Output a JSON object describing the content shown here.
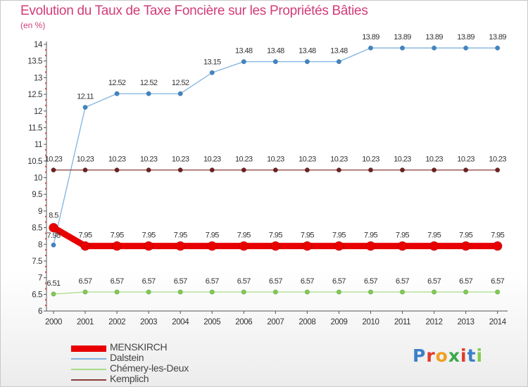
{
  "title": "Evolution du Taux de Taxe Foncière sur les Propriétés Bâties",
  "unit": "(en %)",
  "logo": "Proxiti",
  "colors": {
    "title": "#d23c78",
    "axis": "#555555",
    "grid_dots": "#dd4444"
  },
  "chart_data": {
    "type": "line",
    "title": "Evolution du Taux de Taxe Foncière sur les Propriétés Bâties",
    "ylabel": "(en %)",
    "xlabel": "",
    "ylim": [
      6,
      14
    ],
    "yticks": [
      "6",
      "6.5",
      "7",
      "7.5",
      "8",
      "8.5",
      "9",
      "9.5",
      "10",
      "10.5",
      "11",
      "11.5",
      "12",
      "12.5",
      "13",
      "13.5",
      "14"
    ],
    "categories": [
      "2000",
      "2001",
      "2002",
      "2003",
      "2004",
      "2005",
      "2006",
      "2007",
      "2008",
      "2009",
      "2010",
      "2011",
      "2012",
      "2013",
      "2014"
    ],
    "series": [
      {
        "name": "MENSKIRCH",
        "color": "#e80000",
        "marker_color": "#e80000",
        "line_width": 9,
        "marker_r": 6.5,
        "values": [
          8.5,
          7.95,
          7.95,
          7.95,
          7.95,
          7.95,
          7.95,
          7.95,
          7.95,
          7.95,
          7.95,
          7.95,
          7.95,
          7.95,
          7.95
        ],
        "labels": [
          "8.5",
          "7.95",
          "7.95",
          "7.95",
          "7.95",
          "7.95",
          "7.95",
          "7.95",
          "7.95",
          "7.95",
          "7.95",
          "7.95",
          "7.95",
          "7.95",
          "7.95"
        ]
      },
      {
        "name": "Dalstein",
        "color": "#7fb2e0",
        "marker_color": "#3f86c6",
        "line_width": 1.3,
        "marker_r": 3.2,
        "values": [
          7.98,
          12.11,
          12.52,
          12.52,
          12.52,
          13.15,
          13.48,
          13.48,
          13.48,
          13.48,
          13.89,
          13.89,
          13.89,
          13.89,
          13.89
        ],
        "labels": [
          "7.98",
          "12.11",
          "12.52",
          "12.52",
          "12.52",
          "13.15",
          "13.48",
          "13.48",
          "13.48",
          "13.48",
          "13.89",
          "13.89",
          "13.89",
          "13.89",
          "13.89"
        ]
      },
      {
        "name": "Chémery-les-Deux",
        "color": "#a8dc86",
        "marker_color": "#7fcc50",
        "line_width": 1.3,
        "marker_r": 3.2,
        "values": [
          6.51,
          6.57,
          6.57,
          6.57,
          6.57,
          6.57,
          6.57,
          6.57,
          6.57,
          6.57,
          6.57,
          6.57,
          6.57,
          6.57,
          6.57
        ],
        "labels": [
          "6.51",
          "6.57",
          "6.57",
          "6.57",
          "6.57",
          "6.57",
          "6.57",
          "6.57",
          "6.57",
          "6.57",
          "6.57",
          "6.57",
          "6.57",
          "6.57",
          "6.57"
        ]
      },
      {
        "name": "Kemplich",
        "color": "#8a3a3a",
        "marker_color": "#6e2020",
        "line_width": 1.3,
        "marker_r": 3.2,
        "values": [
          10.23,
          10.23,
          10.23,
          10.23,
          10.23,
          10.23,
          10.23,
          10.23,
          10.23,
          10.23,
          10.23,
          10.23,
          10.23,
          10.23,
          10.23
        ],
        "labels": [
          "10.23",
          "10.23",
          "10.23",
          "10.23",
          "10.23",
          "10.23",
          "10.23",
          "10.23",
          "10.23",
          "10.23",
          "10.23",
          "10.23",
          "10.23",
          "10.23",
          "10.23"
        ]
      }
    ],
    "legend_position": "bottom-left"
  }
}
